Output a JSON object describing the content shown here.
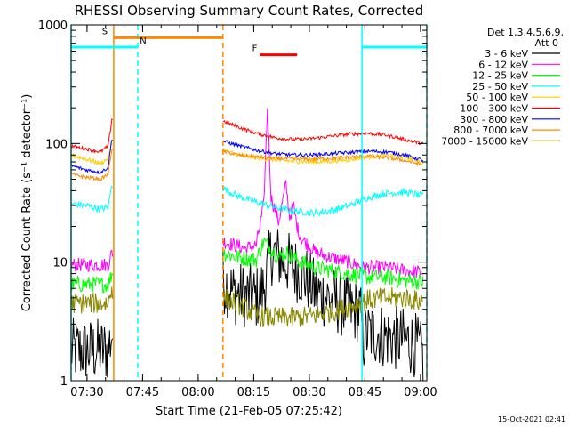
{
  "chart_data": {
    "type": "line",
    "title": "RHESSI Observing Summary Count Rates, Corrected",
    "xlabel": "Start Time (21-Feb-05 07:25:42)",
    "ylabel": "Corrected Count Rate (s⁻¹ detector⁻¹)",
    "y_scale": "log",
    "ylim": [
      1,
      1000
    ],
    "xlim_minutes": [
      0,
      96
    ],
    "x_ticks": [
      {
        "label": "07:30",
        "t": 4.3
      },
      {
        "label": "07:45",
        "t": 19.3
      },
      {
        "label": "08:00",
        "t": 34.3
      },
      {
        "label": "08:15",
        "t": 49.3
      },
      {
        "label": "08:30",
        "t": 64.3
      },
      {
        "label": "08:45",
        "t": 79.3
      },
      {
        "label": "09:00",
        "t": 94.3
      }
    ],
    "y_ticks": [
      {
        "label": "1",
        "v": 1
      },
      {
        "label": "10",
        "v": 10
      },
      {
        "label": "100",
        "v": 100
      },
      {
        "label": "1000",
        "v": 1000
      }
    ],
    "legend_header": [
      "Det 1,3,4,5,6,9,",
      "Att 0"
    ],
    "series": [
      {
        "name": "3 - 6 keV",
        "color": "#000000",
        "t": [
          0,
          5,
          10,
          11,
          41,
          44,
          50,
          52,
          54,
          56,
          58,
          60,
          62,
          64,
          66,
          70,
          75,
          78,
          79,
          80,
          83,
          86,
          90,
          93,
          95
        ],
        "v": [
          1.8,
          1.8,
          1.8,
          2.5,
          7,
          5.5,
          5,
          6,
          12,
          11,
          10,
          9,
          8,
          7,
          5.5,
          5,
          4,
          3.8,
          2.2,
          2.5,
          2.5,
          2.3,
          2.2,
          2.0,
          1.6
        ]
      },
      {
        "name": "6 - 12 keV",
        "color": "#ff00ff",
        "t": [
          0,
          5,
          10,
          11,
          41,
          44,
          47,
          50,
          52,
          53,
          54,
          56,
          58,
          59,
          60,
          61,
          62,
          64,
          66,
          70,
          75,
          79,
          85,
          90,
          95
        ],
        "v": [
          9.5,
          9.5,
          9.5,
          12,
          15,
          14,
          13,
          14,
          30,
          200,
          35,
          22,
          45,
          24,
          30,
          20,
          16,
          14,
          12,
          11,
          10,
          9,
          9,
          8.5,
          8.2
        ]
      },
      {
        "name": "12 - 25 keV",
        "color": "#00ff00",
        "t": [
          0,
          5,
          10,
          11,
          41,
          45,
          50,
          52,
          54,
          56,
          58,
          60,
          62,
          64,
          66,
          70,
          75,
          80,
          85,
          90,
          95
        ],
        "v": [
          6.5,
          6.5,
          6.5,
          8,
          12,
          11,
          10.5,
          15,
          13,
          11,
          12,
          11,
          10,
          9.5,
          9,
          8.5,
          8,
          7.5,
          7.5,
          7,
          6.8
        ]
      },
      {
        "name": "25 - 50 keV",
        "color": "#00ffff",
        "t": [
          0,
          4,
          8,
          10,
          11,
          41,
          45,
          50,
          55,
          60,
          65,
          70,
          75,
          80,
          85,
          90,
          95
        ],
        "v": [
          31,
          30,
          28,
          29,
          45,
          42,
          36,
          32,
          29,
          27,
          26,
          27,
          30,
          35,
          38,
          39,
          36
        ]
      },
      {
        "name": "50 - 100 keV",
        "color": "#ffcc00",
        "t": [
          0,
          4,
          8,
          10,
          11,
          41,
          45,
          50,
          55,
          60,
          65,
          70,
          75,
          80,
          85,
          90,
          95
        ],
        "v": [
          80,
          74,
          68,
          75,
          100,
          88,
          80,
          76,
          73,
          71,
          70,
          71,
          73,
          77,
          79,
          77,
          70
        ]
      },
      {
        "name": "100 - 300 keV",
        "color": "#ff0000",
        "t": [
          0,
          4,
          8,
          10,
          11,
          41,
          45,
          50,
          55,
          60,
          65,
          70,
          75,
          80,
          85,
          90,
          95
        ],
        "v": [
          95,
          90,
          85,
          95,
          160,
          155,
          138,
          122,
          112,
          108,
          110,
          115,
          120,
          122,
          118,
          108,
          100
        ]
      },
      {
        "name": "300 - 800 keV",
        "color": "#0000ff",
        "t": [
          0,
          4,
          8,
          10,
          11,
          41,
          45,
          50,
          55,
          60,
          65,
          70,
          75,
          80,
          85,
          90,
          95
        ],
        "v": [
          65,
          60,
          57,
          63,
          110,
          105,
          96,
          88,
          82,
          80,
          80,
          82,
          84,
          86,
          85,
          80,
          72
        ]
      },
      {
        "name": "800 - 7000 keV",
        "color": "#ff8800",
        "t": [
          0,
          4,
          8,
          10,
          11,
          41,
          45,
          50,
          55,
          60,
          65,
          70,
          75,
          80,
          85,
          90,
          95
        ],
        "v": [
          55,
          52,
          50,
          55,
          90,
          86,
          80,
          77,
          75,
          74,
          74,
          75,
          77,
          78,
          76,
          72,
          66
        ]
      },
      {
        "name": "7000 - 15000 keV",
        "color": "#888800",
        "t": [
          0,
          5,
          10,
          11,
          41,
          45,
          50,
          55,
          60,
          65,
          70,
          75,
          80,
          85,
          90,
          95
        ],
        "v": [
          4.5,
          4.5,
          4.5,
          6,
          5,
          4.5,
          3.5,
          3.4,
          3.4,
          3.5,
          3.8,
          4.2,
          4.8,
          5.0,
          5.0,
          4.6
        ]
      }
    ],
    "markers": [
      {
        "type": "band",
        "label": "S",
        "color": "#ff8800",
        "t_start": 11.5,
        "t_end": 41,
        "v": 780
      },
      {
        "type": "band",
        "label": "N",
        "color": "#00ffff",
        "t_start": 0,
        "t_end": 18,
        "v": 650
      },
      {
        "type": "band",
        "label": "",
        "color": "#00ffff",
        "t_start": 78.5,
        "t_end": 96,
        "v": 650
      },
      {
        "type": "band",
        "label": "F",
        "color": "#ff0000",
        "t_start": 51,
        "t_end": 61,
        "v": 560
      }
    ],
    "vlines": [
      {
        "t": 0,
        "color": "#00ffff",
        "style": "solid"
      },
      {
        "t": 11.5,
        "color": "#ff8800",
        "style": "solid"
      },
      {
        "t": 18,
        "color": "#00ffff",
        "style": "dashed"
      },
      {
        "t": 41,
        "color": "#ff8800",
        "style": "dashed"
      },
      {
        "t": 78.5,
        "color": "#00ffff",
        "style": "solid"
      },
      {
        "t": 96,
        "color": "#00ffff",
        "style": "dashed"
      }
    ],
    "footer_timestamp": "15-Oct-2021 02:41"
  }
}
